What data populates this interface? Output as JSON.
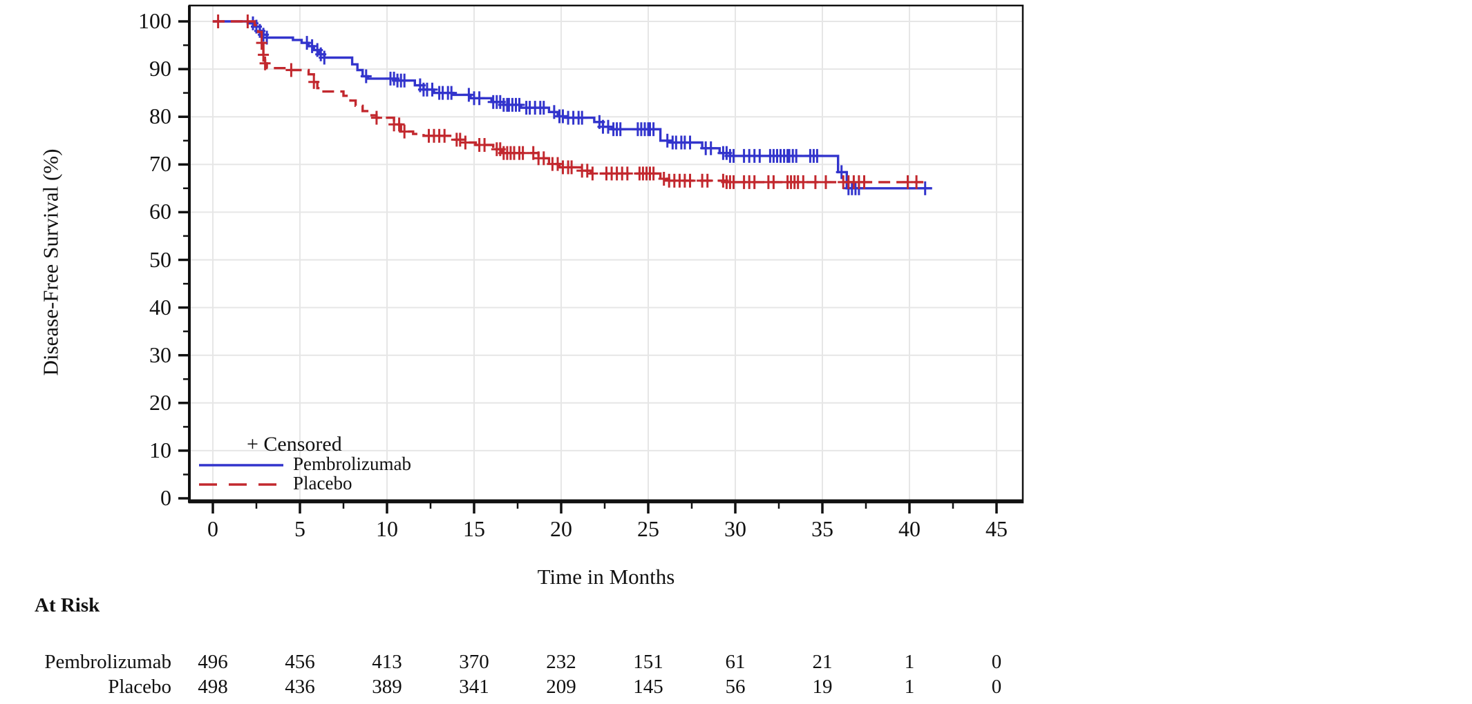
{
  "chart_data": {
    "type": "line",
    "subtype": "kaplan-meier-step",
    "xlabel": "Time in Months",
    "ylabel": "Disease-Free Survival (%)",
    "xlim": [
      0,
      45
    ],
    "ylim": [
      0,
      100
    ],
    "xticks": [
      0,
      5,
      10,
      15,
      20,
      25,
      30,
      35,
      40,
      45
    ],
    "xticks_minor": [
      2.5,
      7.5,
      12.5,
      17.5,
      22.5,
      27.5,
      32.5,
      37.5,
      42.5
    ],
    "yticks": [
      0,
      10,
      20,
      30,
      40,
      50,
      60,
      70,
      80,
      90,
      100
    ],
    "yticks_minor": [
      5,
      15,
      25,
      35,
      45,
      55,
      65,
      75,
      85,
      95
    ],
    "grid": true,
    "grid_color": "#e6e6e6",
    "frame_color": "#111111",
    "legend": {
      "position": "inside-bottom-left",
      "censored_label": "+ Censored"
    },
    "series": [
      {
        "name": "Pembrolizumab",
        "color": "#3234cc",
        "style": "solid",
        "end_time": 41.3,
        "steps": [
          [
            0,
            100
          ],
          [
            2.0,
            99.6
          ],
          [
            2.4,
            98.9
          ],
          [
            2.7,
            98.0
          ],
          [
            2.9,
            97.2
          ],
          [
            3.1,
            96.6
          ],
          [
            4.6,
            96.1
          ],
          [
            5.1,
            95.5
          ],
          [
            5.5,
            94.8
          ],
          [
            5.8,
            94.0
          ],
          [
            6.1,
            93.1
          ],
          [
            6.4,
            92.4
          ],
          [
            8.0,
            91.0
          ],
          [
            8.3,
            89.8
          ],
          [
            8.6,
            88.5
          ],
          [
            8.9,
            88.0
          ],
          [
            10.5,
            87.6
          ],
          [
            11.6,
            86.6
          ],
          [
            12.1,
            85.7
          ],
          [
            12.7,
            85.0
          ],
          [
            13.8,
            84.6
          ],
          [
            14.8,
            83.9
          ],
          [
            16.0,
            83.1
          ],
          [
            16.7,
            82.5
          ],
          [
            17.7,
            81.9
          ],
          [
            19.3,
            81.0
          ],
          [
            19.8,
            80.1
          ],
          [
            20.3,
            79.8
          ],
          [
            21.9,
            78.9
          ],
          [
            22.4,
            77.9
          ],
          [
            22.9,
            77.4
          ],
          [
            25.7,
            75.0
          ],
          [
            26.3,
            74.6
          ],
          [
            28.1,
            73.4
          ],
          [
            29.1,
            72.4
          ],
          [
            29.7,
            71.8
          ],
          [
            35.9,
            68.4
          ],
          [
            36.4,
            65.0
          ]
        ],
        "censor_times": [
          2.3,
          2.5,
          2.7,
          2.9,
          3.1,
          5.4,
          5.7,
          6.0,
          6.2,
          6.4,
          8.8,
          10.2,
          10.4,
          10.6,
          10.8,
          11.0,
          11.9,
          12.1,
          12.3,
          12.6,
          13.0,
          13.2,
          13.5,
          13.7,
          14.7,
          15.0,
          15.3,
          16.1,
          16.3,
          16.5,
          16.7,
          16.9,
          17.0,
          17.2,
          17.4,
          17.6,
          18.0,
          18.2,
          18.5,
          18.8,
          19.0,
          19.6,
          19.9,
          20.1,
          20.4,
          20.7,
          21.0,
          21.2,
          22.2,
          22.4,
          22.7,
          23.0,
          23.2,
          23.4,
          24.4,
          24.6,
          24.8,
          25.0,
          25.1,
          25.3,
          26.1,
          26.4,
          26.6,
          26.9,
          27.1,
          27.4,
          28.3,
          28.6,
          29.3,
          29.5,
          29.7,
          29.9,
          30.5,
          30.8,
          31.1,
          31.4,
          32.0,
          32.2,
          32.4,
          32.6,
          32.8,
          33.0,
          33.1,
          33.3,
          33.5,
          34.3,
          34.5,
          34.7,
          36.1,
          36.5,
          36.7,
          36.9,
          37.1,
          40.9
        ]
      },
      {
        "name": "Placebo",
        "color": "#c2282e",
        "style": "dashed",
        "end_time": 40.8,
        "steps": [
          [
            0,
            100
          ],
          [
            2.4,
            99.2
          ],
          [
            2.6,
            97.8
          ],
          [
            2.8,
            95.5
          ],
          [
            2.9,
            93.0
          ],
          [
            3.0,
            91.2
          ],
          [
            3.1,
            90.2
          ],
          [
            4.2,
            89.8
          ],
          [
            5.5,
            88.9
          ],
          [
            5.8,
            87.3
          ],
          [
            6.0,
            86.0
          ],
          [
            6.2,
            85.3
          ],
          [
            7.5,
            84.4
          ],
          [
            7.9,
            83.4
          ],
          [
            8.2,
            82.3
          ],
          [
            8.6,
            81.2
          ],
          [
            9.0,
            80.3
          ],
          [
            9.4,
            79.8
          ],
          [
            10.4,
            78.4
          ],
          [
            10.8,
            76.9
          ],
          [
            11.5,
            76.4
          ],
          [
            12.1,
            76.0
          ],
          [
            13.7,
            75.2
          ],
          [
            14.5,
            74.6
          ],
          [
            15.1,
            74.1
          ],
          [
            16.1,
            73.2
          ],
          [
            16.6,
            72.4
          ],
          [
            18.7,
            71.3
          ],
          [
            19.3,
            70.1
          ],
          [
            19.9,
            69.4
          ],
          [
            21.1,
            68.7
          ],
          [
            21.7,
            68.1
          ],
          [
            25.7,
            67.0
          ],
          [
            26.2,
            66.6
          ],
          [
            29.5,
            66.3
          ]
        ],
        "censor_times": [
          0.3,
          2.0,
          2.8,
          2.9,
          3.0,
          4.5,
          5.8,
          9.4,
          10.4,
          10.7,
          11.0,
          12.4,
          12.7,
          13.0,
          13.3,
          14.0,
          14.2,
          14.5,
          15.3,
          15.6,
          16.3,
          16.5,
          16.7,
          16.9,
          17.1,
          17.3,
          17.6,
          17.8,
          18.4,
          18.7,
          19.0,
          19.5,
          19.8,
          20.1,
          20.4,
          20.6,
          21.2,
          21.5,
          21.8,
          22.6,
          22.9,
          23.2,
          23.5,
          23.8,
          24.5,
          24.7,
          24.9,
          25.1,
          25.3,
          25.9,
          26.2,
          26.5,
          26.8,
          27.1,
          27.4,
          28.1,
          28.4,
          29.3,
          29.5,
          29.7,
          29.9,
          30.5,
          30.8,
          31.1,
          31.9,
          32.2,
          33.0,
          33.2,
          33.4,
          33.6,
          33.9,
          34.6,
          35.2,
          36.2,
          36.5,
          36.8,
          37.1,
          37.4,
          39.9,
          40.4
        ]
      }
    ],
    "at_risk": {
      "title": "At Risk",
      "times": [
        0,
        5,
        10,
        15,
        20,
        25,
        30,
        35,
        40,
        45
      ],
      "rows": [
        {
          "name": "Pembrolizumab",
          "values": [
            496,
            456,
            413,
            370,
            232,
            151,
            61,
            21,
            1,
            0
          ]
        },
        {
          "name": "Placebo",
          "values": [
            498,
            436,
            389,
            341,
            209,
            145,
            56,
            19,
            1,
            0
          ]
        }
      ]
    }
  }
}
